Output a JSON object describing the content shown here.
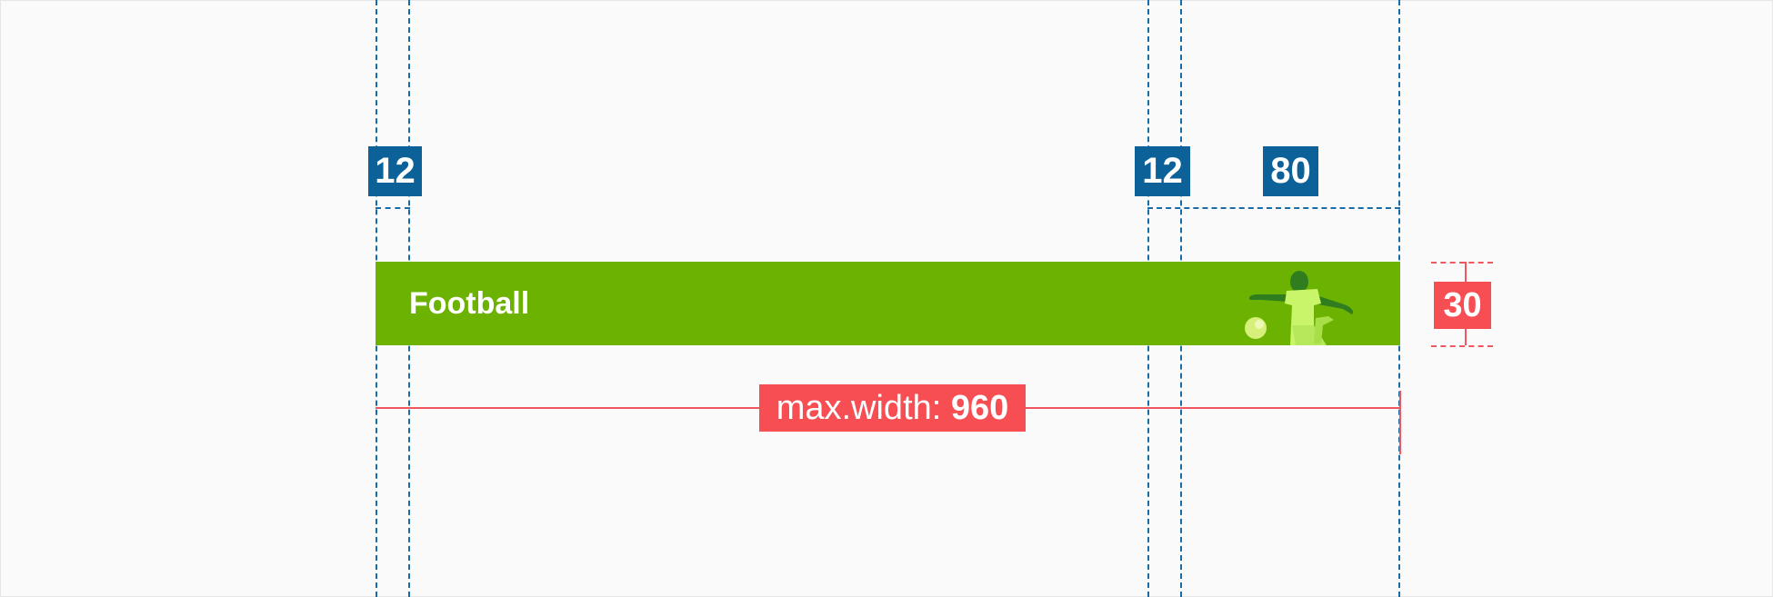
{
  "annotations": {
    "left_padding": "12",
    "right_gap": "12",
    "image_width": "80",
    "banner_height": "30",
    "max_width_label": "max.width:",
    "max_width_value": "960"
  },
  "banner": {
    "title": "Football",
    "background": "#6bb300",
    "icon": "football-player-icon"
  },
  "colors": {
    "guide_blue": "#1a6ca8",
    "badge_blue": "#0b6198",
    "measure_red": "#f64e53",
    "page_bg": "#fafafa"
  }
}
